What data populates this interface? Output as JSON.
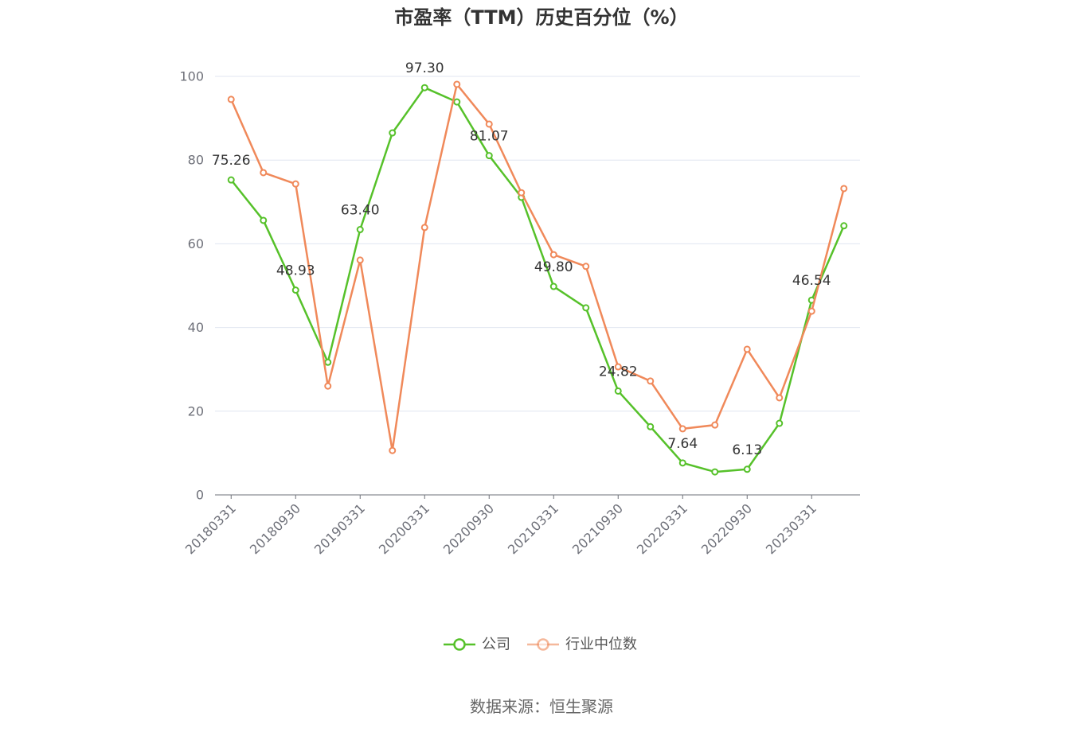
{
  "source": "数据来源：恒生聚源",
  "chart_data": {
    "type": "line",
    "title": "市盈率（TTM）历史百分位（%）",
    "categories": [
      "20180331",
      "",
      "20180930",
      "",
      "20190331",
      "",
      "20200331",
      "",
      "20200930",
      "",
      "20210331",
      "",
      "20210930",
      "",
      "20220331",
      "",
      "20220930",
      "",
      "20230331",
      ""
    ],
    "ylim": [
      0,
      100
    ],
    "yticks": [
      0,
      20,
      40,
      60,
      80,
      100
    ],
    "grid": true,
    "legend_position": "bottom",
    "series": [
      {
        "name": "公司",
        "color": "#56c12a",
        "values": [
          75.26,
          65.6,
          48.93,
          31.7,
          63.4,
          86.5,
          97.3,
          93.9,
          81.07,
          71.1,
          49.8,
          44.7,
          24.82,
          16.3,
          7.64,
          5.5,
          6.13,
          17.1,
          46.54,
          64.3
        ],
        "data_labels": [
          "75.26",
          "",
          "48.93",
          "",
          "63.40",
          "",
          "97.30",
          "",
          "81.07",
          "",
          "49.80",
          "",
          "24.82",
          "",
          "7.64",
          "",
          "6.13",
          "",
          "46.54",
          ""
        ]
      },
      {
        "name": "行业中位数",
        "color": "#f0895a",
        "values": [
          94.5,
          77.0,
          74.3,
          26.0,
          56.1,
          10.6,
          63.9,
          98.1,
          88.6,
          72.2,
          57.4,
          54.6,
          30.6,
          27.2,
          15.8,
          16.7,
          34.8,
          23.2,
          43.9,
          73.2
        ]
      }
    ]
  }
}
